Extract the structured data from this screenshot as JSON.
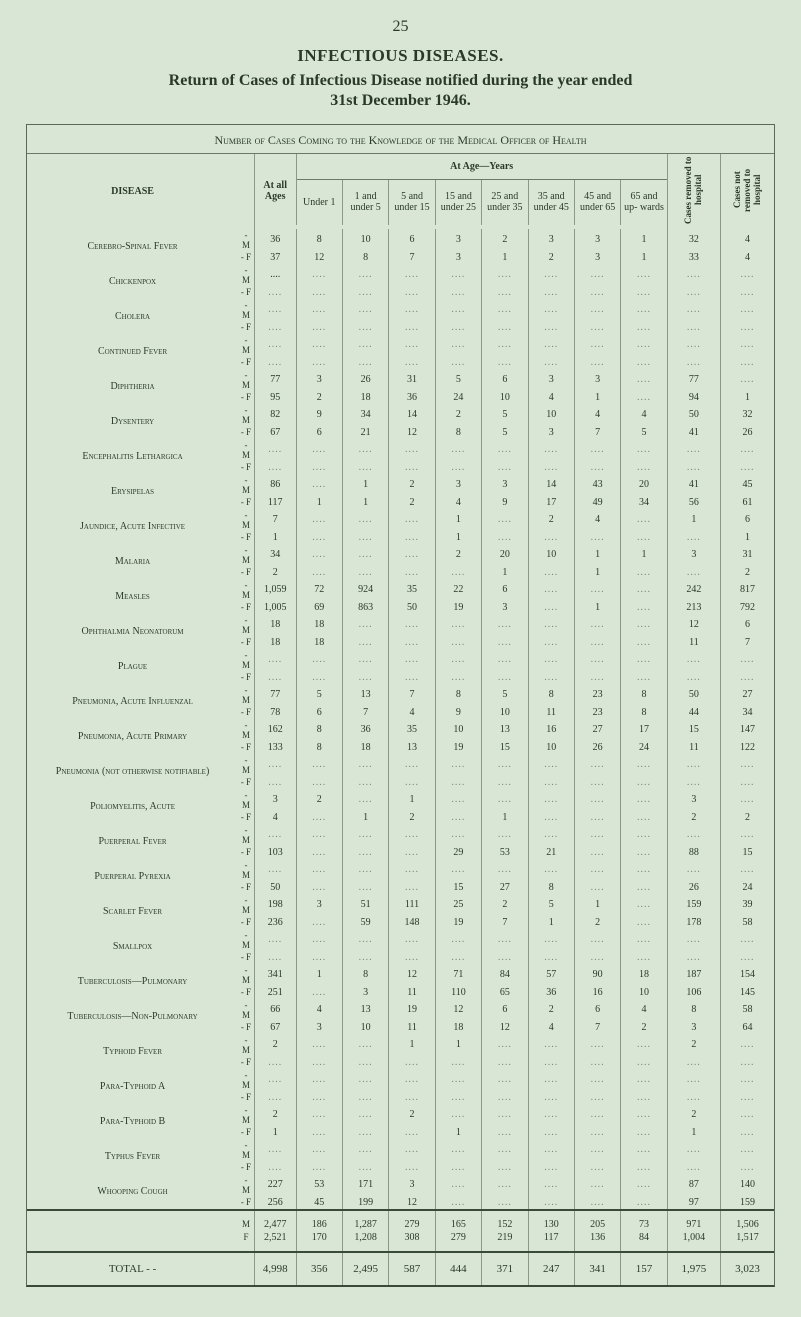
{
  "page": {
    "number": "25",
    "heading": "INFECTIOUS DISEASES.",
    "subheading_line1": "Return of Cases of Infectious Disease notified during the year ended",
    "subheading_line2": "31st December 1946."
  },
  "caption": "Number of Cases Coming to the Knowledge of the Medical Officer of Health",
  "headers": {
    "disease": "DISEASE",
    "at_all_ages": "At all Ages",
    "at_age_years": "At Age—Years",
    "under1": "Under 1",
    "age_1_5": "1 and under 5",
    "age_5_15": "5 and under 15",
    "age_15_25": "15 and under 25",
    "age_25_35": "25 and under 35",
    "age_35_45": "35 and under 45",
    "age_45_65": "45 and under 65",
    "age_65_up": "65 and up- wards",
    "removed": "Cases removed to hospital",
    "not_removed": "Cases not removed to hospital"
  },
  "diseases": [
    {
      "name": "Cerebro-Spinal Fever",
      "rows": [
        [
          "M",
          "36",
          "8",
          "10",
          "6",
          "3",
          "2",
          "3",
          "3",
          "1",
          "32",
          "4"
        ],
        [
          "F",
          "37",
          "12",
          "8",
          "7",
          "3",
          "1",
          "2",
          "3",
          "1",
          "33",
          "4"
        ]
      ]
    },
    {
      "name": "Chickenpox",
      "rows": [
        [
          "M",
          "....",
          "",
          "",
          "",
          "",
          "",
          "",
          "",
          "",
          "",
          ""
        ],
        [
          "F",
          "",
          "",
          "",
          "",
          "",
          "",
          "",
          "",
          "",
          "",
          ""
        ]
      ]
    },
    {
      "name": "Cholera",
      "rows": [
        [
          "M",
          "",
          "",
          "",
          "",
          "",
          "",
          "",
          "",
          "",
          "",
          ""
        ],
        [
          "F",
          "",
          "",
          "",
          "",
          "",
          "",
          "",
          "",
          "",
          "",
          ""
        ]
      ]
    },
    {
      "name": "Continued Fever",
      "rows": [
        [
          "M",
          "",
          "",
          "",
          "",
          "",
          "",
          "",
          "",
          "",
          "",
          ""
        ],
        [
          "F",
          "",
          "",
          "",
          "",
          "",
          "",
          "",
          "",
          "",
          "",
          ""
        ]
      ]
    },
    {
      "name": "Diphtheria",
      "rows": [
        [
          "M",
          "77",
          "3",
          "26",
          "31",
          "5",
          "6",
          "3",
          "3",
          "",
          "77",
          ""
        ],
        [
          "F",
          "95",
          "2",
          "18",
          "36",
          "24",
          "10",
          "4",
          "1",
          "",
          "94",
          "1"
        ]
      ]
    },
    {
      "name": "Dysentery",
      "rows": [
        [
          "M",
          "82",
          "9",
          "34",
          "14",
          "2",
          "5",
          "10",
          "4",
          "4",
          "50",
          "32"
        ],
        [
          "F",
          "67",
          "6",
          "21",
          "12",
          "8",
          "5",
          "3",
          "7",
          "5",
          "41",
          "26"
        ]
      ]
    },
    {
      "name": "Encephalitis Lethargica",
      "rows": [
        [
          "M",
          "",
          "",
          "",
          "",
          "",
          "",
          "",
          "",
          "",
          "",
          ""
        ],
        [
          "F",
          "",
          "",
          "",
          "",
          "",
          "",
          "",
          "",
          "",
          "",
          ""
        ]
      ]
    },
    {
      "name": "Erysipelas",
      "rows": [
        [
          "M",
          "86",
          "",
          "1",
          "2",
          "3",
          "3",
          "14",
          "43",
          "20",
          "41",
          "45"
        ],
        [
          "F",
          "117",
          "1",
          "1",
          "2",
          "4",
          "9",
          "17",
          "49",
          "34",
          "56",
          "61"
        ]
      ]
    },
    {
      "name": "Jaundice, Acute Infective",
      "rows": [
        [
          "M",
          "7",
          "",
          "",
          "",
          "1",
          "",
          "2",
          "4",
          "",
          "1",
          "6"
        ],
        [
          "F",
          "1",
          "",
          "",
          "",
          "1",
          "",
          "",
          "",
          "",
          "",
          "1"
        ]
      ]
    },
    {
      "name": "Malaria",
      "rows": [
        [
          "M",
          "34",
          "",
          "",
          "",
          "2",
          "20",
          "10",
          "1",
          "1",
          "3",
          "31"
        ],
        [
          "F",
          "2",
          "",
          "",
          "",
          "",
          "1",
          "",
          "1",
          "",
          "",
          "2"
        ]
      ]
    },
    {
      "name": "Measles",
      "rows": [
        [
          "M",
          "1,059",
          "72",
          "924",
          "35",
          "22",
          "6",
          "",
          "",
          "",
          "242",
          "817"
        ],
        [
          "F",
          "1,005",
          "69",
          "863",
          "50",
          "19",
          "3",
          "",
          "1",
          "",
          "213",
          "792"
        ]
      ]
    },
    {
      "name": "Ophthalmia Neonatorum",
      "rows": [
        [
          "M",
          "18",
          "18",
          "",
          "",
          "",
          "",
          "",
          "",
          "",
          "12",
          "6"
        ],
        [
          "F",
          "18",
          "18",
          "",
          "",
          "",
          "",
          "",
          "",
          "",
          "11",
          "7"
        ]
      ]
    },
    {
      "name": "Plague",
      "rows": [
        [
          "M",
          "",
          "",
          "",
          "",
          "",
          "",
          "",
          "",
          "",
          "",
          ""
        ],
        [
          "F",
          "",
          "",
          "",
          "",
          "",
          "",
          "",
          "",
          "",
          "",
          ""
        ]
      ]
    },
    {
      "name": "Pneumonia, Acute Influenzal",
      "rows": [
        [
          "M",
          "77",
          "5",
          "13",
          "7",
          "8",
          "5",
          "8",
          "23",
          "8",
          "50",
          "27"
        ],
        [
          "F",
          "78",
          "6",
          "7",
          "4",
          "9",
          "10",
          "11",
          "23",
          "8",
          "44",
          "34"
        ]
      ]
    },
    {
      "name": "Pneumonia, Acute Primary",
      "rows": [
        [
          "M",
          "162",
          "8",
          "36",
          "35",
          "10",
          "13",
          "16",
          "27",
          "17",
          "15",
          "147"
        ],
        [
          "F",
          "133",
          "8",
          "18",
          "13",
          "19",
          "15",
          "10",
          "26",
          "24",
          "11",
          "122"
        ]
      ]
    },
    {
      "name": "Pneumonia (not otherwise notifiable)",
      "rows": [
        [
          "M",
          "",
          "",
          "",
          "",
          "",
          "",
          "",
          "",
          "",
          "",
          ""
        ],
        [
          "F",
          "",
          "",
          "",
          "",
          "",
          "",
          "",
          "",
          "",
          "",
          ""
        ]
      ]
    },
    {
      "name": "Poliomyelitis, Acute",
      "rows": [
        [
          "M",
          "3",
          "2",
          "",
          "1",
          "",
          "",
          "",
          "",
          "",
          "3",
          ""
        ],
        [
          "F",
          "4",
          "",
          "1",
          "2",
          "",
          "1",
          "",
          "",
          "",
          "2",
          "2"
        ]
      ]
    },
    {
      "name": "Puerperal Fever",
      "rows": [
        [
          "M",
          "",
          "",
          "",
          "",
          "",
          "",
          "",
          "",
          "",
          "",
          ""
        ],
        [
          "F",
          "103",
          "",
          "",
          "",
          "29",
          "53",
          "21",
          "",
          "",
          "88",
          "15"
        ]
      ]
    },
    {
      "name": "Puerperal Pyrexia",
      "rows": [
        [
          "M",
          "",
          "",
          "",
          "",
          "",
          "",
          "",
          "",
          "",
          "",
          ""
        ],
        [
          "F",
          "50",
          "",
          "",
          "",
          "15",
          "27",
          "8",
          "",
          "",
          "26",
          "24"
        ]
      ]
    },
    {
      "name": "Scarlet Fever",
      "rows": [
        [
          "M",
          "198",
          "3",
          "51",
          "111",
          "25",
          "2",
          "5",
          "1",
          "",
          "159",
          "39"
        ],
        [
          "F",
          "236",
          "",
          "59",
          "148",
          "19",
          "7",
          "1",
          "2",
          "",
          "178",
          "58"
        ]
      ]
    },
    {
      "name": "Smallpox",
      "rows": [
        [
          "M",
          "",
          "",
          "",
          "",
          "",
          "",
          "",
          "",
          "",
          "",
          ""
        ],
        [
          "F",
          "",
          "",
          "",
          "",
          "",
          "",
          "",
          "",
          "",
          "",
          ""
        ]
      ]
    },
    {
      "name": "Tuberculosis—Pulmonary",
      "rows": [
        [
          "M",
          "341",
          "1",
          "8",
          "12",
          "71",
          "84",
          "57",
          "90",
          "18",
          "187",
          "154"
        ],
        [
          "F",
          "251",
          "",
          "3",
          "11",
          "110",
          "65",
          "36",
          "16",
          "10",
          "106",
          "145"
        ]
      ]
    },
    {
      "name": "Tuberculosis—Non-Pulmonary",
      "rows": [
        [
          "M",
          "66",
          "4",
          "13",
          "19",
          "12",
          "6",
          "2",
          "6",
          "4",
          "8",
          "58"
        ],
        [
          "F",
          "67",
          "3",
          "10",
          "11",
          "18",
          "12",
          "4",
          "7",
          "2",
          "3",
          "64"
        ]
      ]
    },
    {
      "name": "Typhoid Fever",
      "rows": [
        [
          "M",
          "2",
          "",
          "",
          "1",
          "1",
          "",
          "",
          "",
          "",
          "2",
          ""
        ],
        [
          "F",
          "",
          "",
          "",
          "",
          "",
          "",
          "",
          "",
          "",
          "",
          ""
        ]
      ]
    },
    {
      "name": "Para-Typhoid A",
      "rows": [
        [
          "M",
          "",
          "",
          "",
          "",
          "",
          "",
          "",
          "",
          "",
          "",
          ""
        ],
        [
          "F",
          "",
          "",
          "",
          "",
          "",
          "",
          "",
          "",
          "",
          "",
          ""
        ]
      ]
    },
    {
      "name": "Para-Typhoid B",
      "rows": [
        [
          "M",
          "2",
          "",
          "",
          "2",
          "",
          "",
          "",
          "",
          "",
          "2",
          ""
        ],
        [
          "F",
          "1",
          "",
          "",
          "",
          "1",
          "",
          "",
          "",
          "",
          "1",
          ""
        ]
      ]
    },
    {
      "name": "Typhus Fever",
      "rows": [
        [
          "M",
          "",
          "",
          "",
          "",
          "",
          "",
          "",
          "",
          "",
          "",
          ""
        ],
        [
          "F",
          "",
          "",
          "",
          "",
          "",
          "",
          "",
          "",
          "",
          "",
          ""
        ]
      ]
    },
    {
      "name": "Whooping Cough",
      "rows": [
        [
          "M",
          "227",
          "53",
          "171",
          "3",
          "",
          "",
          "",
          "",
          "",
          "87",
          "140"
        ],
        [
          "F",
          "256",
          "45",
          "199",
          "12",
          "",
          "",
          "",
          "",
          "",
          "97",
          "159"
        ]
      ]
    }
  ],
  "summary": {
    "M": [
      "M",
      "2,477",
      "186",
      "1,287",
      "279",
      "165",
      "152",
      "130",
      "205",
      "73",
      "971",
      "1,506"
    ],
    "F": [
      "F",
      "2,521",
      "170",
      "1,208",
      "308",
      "279",
      "219",
      "117",
      "136",
      "84",
      "1,004",
      "1,517"
    ]
  },
  "total": {
    "label": "TOTAL",
    "row": [
      "",
      "4,998",
      "356",
      "2,495",
      "587",
      "444",
      "371",
      "247",
      "341",
      "157",
      "1,975",
      "3,023"
    ]
  }
}
